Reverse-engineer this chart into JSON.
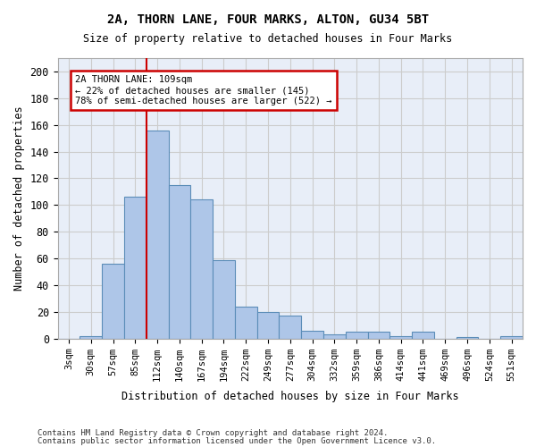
{
  "title1": "2A, THORN LANE, FOUR MARKS, ALTON, GU34 5BT",
  "title2": "Size of property relative to detached houses in Four Marks",
  "xlabel": "Distribution of detached houses by size in Four Marks",
  "ylabel": "Number of detached properties",
  "bar_labels": [
    "3sqm",
    "30sqm",
    "57sqm",
    "85sqm",
    "112sqm",
    "140sqm",
    "167sqm",
    "194sqm",
    "222sqm",
    "249sqm",
    "277sqm",
    "304sqm",
    "332sqm",
    "359sqm",
    "386sqm",
    "414sqm",
    "441sqm",
    "469sqm",
    "496sqm",
    "524sqm",
    "551sqm"
  ],
  "bar_values": [
    0,
    2,
    56,
    106,
    156,
    115,
    104,
    59,
    24,
    20,
    17,
    6,
    3,
    5,
    5,
    2,
    5,
    0,
    1,
    0,
    2
  ],
  "bar_color": "#aec6e8",
  "bar_edge_color": "#5b8db8",
  "vline_x_index": 4,
  "vline_color": "#cc0000",
  "annotation_text": "2A THORN LANE: 109sqm\n← 22% of detached houses are smaller (145)\n78% of semi-detached houses are larger (522) →",
  "annotation_box_color": "#cc0000",
  "bg_color": "#e8eef8",
  "grid_color": "#cccccc",
  "footer1": "Contains HM Land Registry data © Crown copyright and database right 2024.",
  "footer2": "Contains public sector information licensed under the Open Government Licence v3.0.",
  "ylim": [
    0,
    210
  ],
  "yticks": [
    0,
    20,
    40,
    60,
    80,
    100,
    120,
    140,
    160,
    180,
    200
  ]
}
